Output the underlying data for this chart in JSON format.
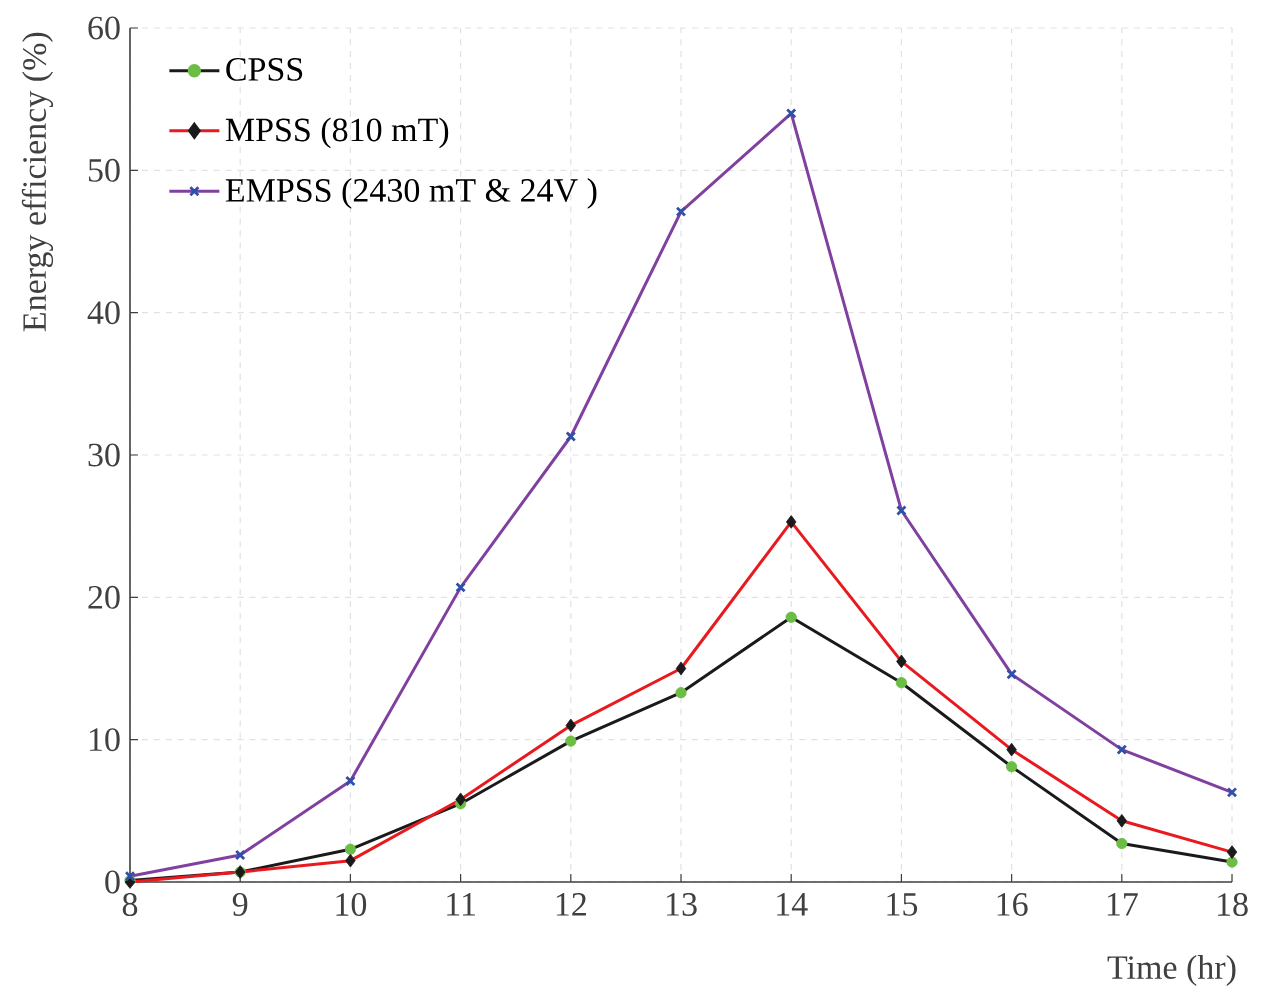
{
  "chart_data": {
    "type": "line",
    "xlabel": "Time (hr)",
    "ylabel": "Energy efficiency (%)",
    "x": [
      8,
      9,
      10,
      11,
      12,
      13,
      14,
      15,
      16,
      17,
      18
    ],
    "xlim": [
      8,
      18
    ],
    "ylim": [
      0,
      60
    ],
    "xticks": [
      8,
      9,
      10,
      11,
      12,
      13,
      14,
      15,
      16,
      17,
      18
    ],
    "yticks": [
      0,
      10,
      20,
      30,
      40,
      50,
      60
    ],
    "grid": true,
    "legend": "top left",
    "series": [
      {
        "name": "CPSS",
        "color": "#1a1a1a",
        "marker": "circle",
        "colors": [
          "#6cbd45",
          "#6cbd45",
          "#6cbd45",
          "#6cbd45",
          "#6cbd45",
          "#6cbd45",
          "#6cbd45",
          "#6cbd45",
          "#6cbd45",
          "#6cbd45",
          "#6cbd45"
        ],
        "values": [
          0.1,
          0.7,
          2.3,
          5.5,
          9.9,
          13.3,
          18.6,
          14.0,
          8.1,
          2.7,
          1.4
        ]
      },
      {
        "name": "MPSS (810 mT)",
        "color": "#e8191f",
        "marker": "diamond",
        "colors": [
          "#1a1a1a",
          "#1a1a1a",
          "#1a1a1a",
          "#1a1a1a",
          "#1a1a1a",
          "#1a1a1a",
          "#1a1a1a",
          "#1a1a1a",
          "#1a1a1a",
          "#1a1a1a",
          "#1a1a1a"
        ],
        "values": [
          0.0,
          0.7,
          1.5,
          5.8,
          11.0,
          15.0,
          25.3,
          15.5,
          9.3,
          4.3,
          2.1
        ]
      },
      {
        "name": "EMPSS (2430 mT & 24V )",
        "color": "#8040a0",
        "marker": "cross",
        "colors": [
          "#3050a8",
          "#3050a8",
          "#3050a8",
          "#3050a8",
          "#3050a8",
          "#3050a8",
          "#3050a8",
          "#3050a8",
          "#3050a8",
          "#3050a8",
          "#3050a8"
        ],
        "values": [
          0.4,
          1.9,
          7.1,
          20.7,
          31.3,
          47.1,
          54.0,
          26.1,
          14.6,
          9.3,
          6.3
        ]
      }
    ]
  }
}
